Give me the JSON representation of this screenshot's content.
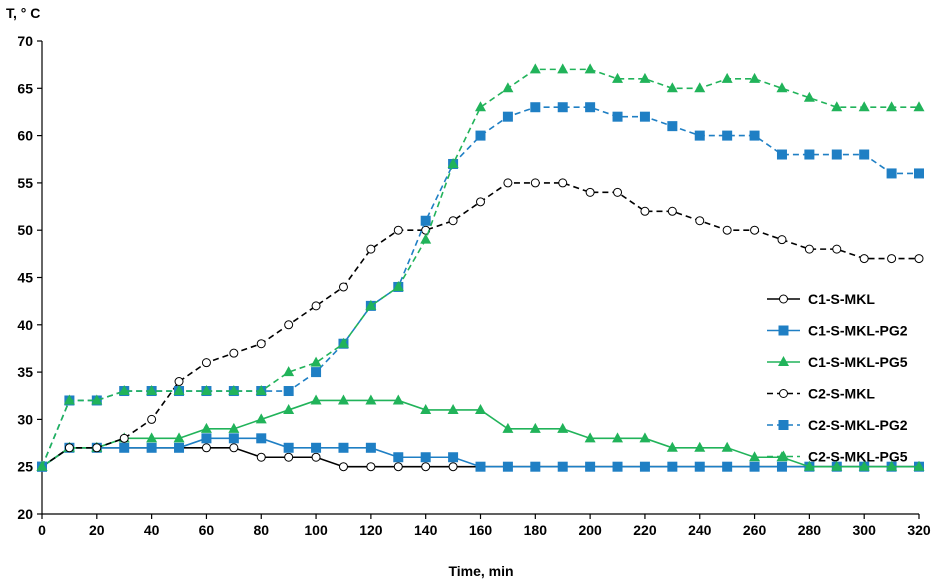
{
  "chart_data": {
    "type": "line",
    "title": "",
    "xlabel": "Time, min",
    "ylabel": "T, ° C",
    "xlim": [
      0,
      320
    ],
    "ylim": [
      20,
      70
    ],
    "x_ticks": [
      0,
      20,
      40,
      60,
      80,
      100,
      120,
      140,
      160,
      180,
      200,
      220,
      240,
      260,
      280,
      300,
      320
    ],
    "y_ticks": [
      20,
      25,
      30,
      35,
      40,
      45,
      50,
      55,
      60,
      65,
      70
    ],
    "grid": false,
    "legend_position": "right",
    "x": [
      0,
      10,
      20,
      30,
      40,
      50,
      60,
      70,
      80,
      90,
      100,
      110,
      120,
      130,
      140,
      150,
      160,
      170,
      180,
      190,
      200,
      210,
      220,
      230,
      240,
      250,
      260,
      270,
      280,
      290,
      300,
      310,
      320
    ],
    "series": [
      {
        "name": "C1-S-MKL",
        "color": "#000000",
        "marker": "circle-open",
        "dash": false,
        "values": [
          25,
          27,
          27,
          27,
          27,
          27,
          27,
          27,
          26,
          26,
          26,
          25,
          25,
          25,
          25,
          25,
          25,
          25,
          25,
          25,
          25,
          25,
          25,
          25,
          25,
          25,
          25,
          25,
          25,
          25,
          25,
          25,
          25
        ]
      },
      {
        "name": "C1-S-MKL-PG2",
        "color": "#1f7fc4",
        "marker": "square",
        "dash": false,
        "values": [
          25,
          27,
          27,
          27,
          27,
          27,
          28,
          28,
          28,
          27,
          27,
          27,
          27,
          26,
          26,
          26,
          25,
          25,
          25,
          25,
          25,
          25,
          25,
          25,
          25,
          25,
          25,
          25,
          25,
          25,
          25,
          25,
          25
        ]
      },
      {
        "name": "C1-S-MKL-PG5",
        "color": "#21b35a",
        "marker": "triangle",
        "dash": false,
        "values": [
          25,
          27,
          27,
          28,
          28,
          28,
          29,
          29,
          30,
          31,
          32,
          32,
          32,
          32,
          31,
          31,
          31,
          29,
          29,
          29,
          28,
          28,
          28,
          27,
          27,
          27,
          26,
          26,
          25,
          25,
          25,
          25,
          25
        ]
      },
      {
        "name": "C2-S-MKL",
        "color": "#000000",
        "marker": "circle-open",
        "dash": true,
        "values": [
          25,
          27,
          27,
          28,
          30,
          34,
          36,
          37,
          38,
          40,
          42,
          44,
          48,
          50,
          50,
          51,
          53,
          55,
          55,
          55,
          54,
          54,
          52,
          52,
          51,
          50,
          50,
          49,
          48,
          48,
          47,
          47,
          47
        ]
      },
      {
        "name": "C2-S-MKL-PG2",
        "color": "#1f7fc4",
        "marker": "square",
        "dash": true,
        "values": [
          25,
          32,
          32,
          33,
          33,
          33,
          33,
          33,
          33,
          33,
          35,
          38,
          42,
          44,
          51,
          57,
          60,
          62,
          63,
          63,
          63,
          62,
          62,
          61,
          60,
          60,
          60,
          58,
          58,
          58,
          58,
          56,
          56
        ]
      },
      {
        "name": "C2-S-MKL-PG5",
        "color": "#21b35a",
        "marker": "triangle",
        "dash": true,
        "values": [
          25,
          32,
          32,
          33,
          33,
          33,
          33,
          33,
          33,
          35,
          36,
          38,
          42,
          44,
          49,
          57,
          63,
          65,
          67,
          67,
          67,
          66,
          66,
          65,
          65,
          66,
          66,
          65,
          64,
          63,
          63,
          63,
          63
        ]
      }
    ]
  }
}
